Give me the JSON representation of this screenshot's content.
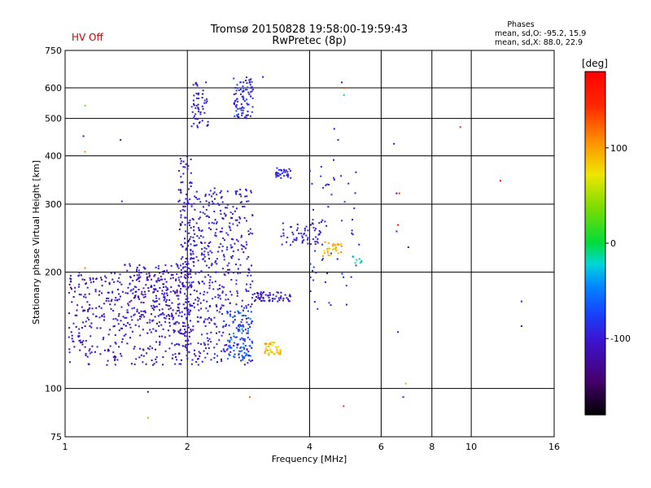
{
  "header": {
    "status": "HV Off",
    "status_color": "#cc0000",
    "title_line1": "Tromsø 20150828 19:58:00-19:59:43",
    "title_line2": "RwPretec (8p)",
    "stats_title": "Phases",
    "stats_o": "mean, sd,O: -95.2, 15.9",
    "stats_x": "mean, sd,X:  88.0, 22.9"
  },
  "chart_data": {
    "type": "scatter",
    "xlabel": "Frequency [MHz]",
    "ylabel": "Stationary phase Virtual Height [km]",
    "xscale": "log",
    "yscale": "log",
    "xlim": [
      1,
      16
    ],
    "ylim": [
      75,
      750
    ],
    "xticks": [
      1,
      2,
      4,
      6,
      8,
      10,
      16
    ],
    "xtick_labels": [
      "1",
      "2",
      "4",
      "6",
      "8",
      "10",
      "16"
    ],
    "yticks": [
      75,
      100,
      200,
      300,
      400,
      500,
      600,
      750
    ],
    "ytick_labels": [
      "75",
      "100",
      "200",
      "300",
      "400",
      "500",
      "600",
      "750"
    ],
    "grid": true,
    "colorbar": {
      "label": "[deg]",
      "range": [
        -180,
        180
      ],
      "ticks": [
        100,
        0,
        -100
      ],
      "tick_labels": [
        "100",
        "0",
        "-100"
      ]
    },
    "clusters": [
      {
        "f_range": [
          1.02,
          2.0
        ],
        "h_range": [
          115,
          200
        ],
        "phase": -110,
        "n": 420
      },
      {
        "f_range": [
          1.4,
          2.0
        ],
        "h_range": [
          150,
          210
        ],
        "phase": -105,
        "n": 150
      },
      {
        "f_range": [
          1.9,
          2.05
        ],
        "h_range": [
          120,
          400
        ],
        "phase": -110,
        "n": 140
      },
      {
        "f_range": [
          2.0,
          2.9
        ],
        "h_range": [
          115,
          330
        ],
        "phase": -100,
        "n": 520
      },
      {
        "f_range": [
          2.05,
          2.25
        ],
        "h_range": [
          470,
          620
        ],
        "phase": -100,
        "n": 55
      },
      {
        "f_range": [
          2.6,
          2.9
        ],
        "h_range": [
          500,
          640
        ],
        "phase": -90,
        "n": 90
      },
      {
        "f_range": [
          2.5,
          2.9
        ],
        "h_range": [
          118,
          160
        ],
        "phase": -60,
        "n": 80
      },
      {
        "f_range": [
          2.9,
          3.6
        ],
        "h_range": [
          168,
          178
        ],
        "phase": -105,
        "n": 60
      },
      {
        "f_range": [
          3.1,
          3.4
        ],
        "h_range": [
          122,
          132
        ],
        "phase": 85,
        "n": 45
      },
      {
        "f_range": [
          3.3,
          3.6
        ],
        "h_range": [
          350,
          372
        ],
        "phase": -95,
        "n": 35
      },
      {
        "f_range": [
          3.4,
          4.3
        ],
        "h_range": [
          235,
          270
        ],
        "phase": -100,
        "n": 55
      },
      {
        "f_range": [
          4.3,
          4.8
        ],
        "h_range": [
          220,
          240
        ],
        "phase": 95,
        "n": 30
      },
      {
        "f_range": [
          4.0,
          5.3
        ],
        "h_range": [
          160,
          400
        ],
        "phase": -95,
        "n": 60
      },
      {
        "f_range": [
          5.1,
          5.4
        ],
        "h_range": [
          210,
          220
        ],
        "phase": -20,
        "n": 8
      }
    ],
    "isolated_points": [
      {
        "f": 1.12,
        "h": 540,
        "phase": 40
      },
      {
        "f": 1.11,
        "h": 450,
        "phase": -100
      },
      {
        "f": 1.12,
        "h": 410,
        "phase": 110
      },
      {
        "f": 1.12,
        "h": 205,
        "phase": 110
      },
      {
        "f": 1.37,
        "h": 440,
        "phase": -100
      },
      {
        "f": 1.38,
        "h": 305,
        "phase": -80
      },
      {
        "f": 1.6,
        "h": 98,
        "phase": -110
      },
      {
        "f": 1.6,
        "h": 84,
        "phase": 40
      },
      {
        "f": 3.07,
        "h": 640,
        "phase": -100
      },
      {
        "f": 2.85,
        "h": 95,
        "phase": 120
      },
      {
        "f": 4.85,
        "h": 600,
        "phase": 130
      },
      {
        "f": 4.8,
        "h": 620,
        "phase": -110
      },
      {
        "f": 4.86,
        "h": 575,
        "phase": -20
      },
      {
        "f": 4.85,
        "h": 90,
        "phase": 140
      },
      {
        "f": 4.6,
        "h": 470,
        "phase": -110
      },
      {
        "f": 4.7,
        "h": 440,
        "phase": -100
      },
      {
        "f": 6.45,
        "h": 430,
        "phase": -100
      },
      {
        "f": 6.55,
        "h": 320,
        "phase": -110
      },
      {
        "f": 6.65,
        "h": 320,
        "phase": 140
      },
      {
        "f": 6.55,
        "h": 255,
        "phase": -100
      },
      {
        "f": 6.6,
        "h": 265,
        "phase": 160
      },
      {
        "f": 7.0,
        "h": 232,
        "phase": -110
      },
      {
        "f": 6.6,
        "h": 140,
        "phase": -100
      },
      {
        "f": 6.9,
        "h": 103,
        "phase": 40
      },
      {
        "f": 6.8,
        "h": 95,
        "phase": -100
      },
      {
        "f": 9.4,
        "h": 475,
        "phase": 140
      },
      {
        "f": 11.8,
        "h": 345,
        "phase": 150
      },
      {
        "f": 13.3,
        "h": 168,
        "phase": -110
      },
      {
        "f": 13.3,
        "h": 145,
        "phase": -120
      }
    ]
  }
}
